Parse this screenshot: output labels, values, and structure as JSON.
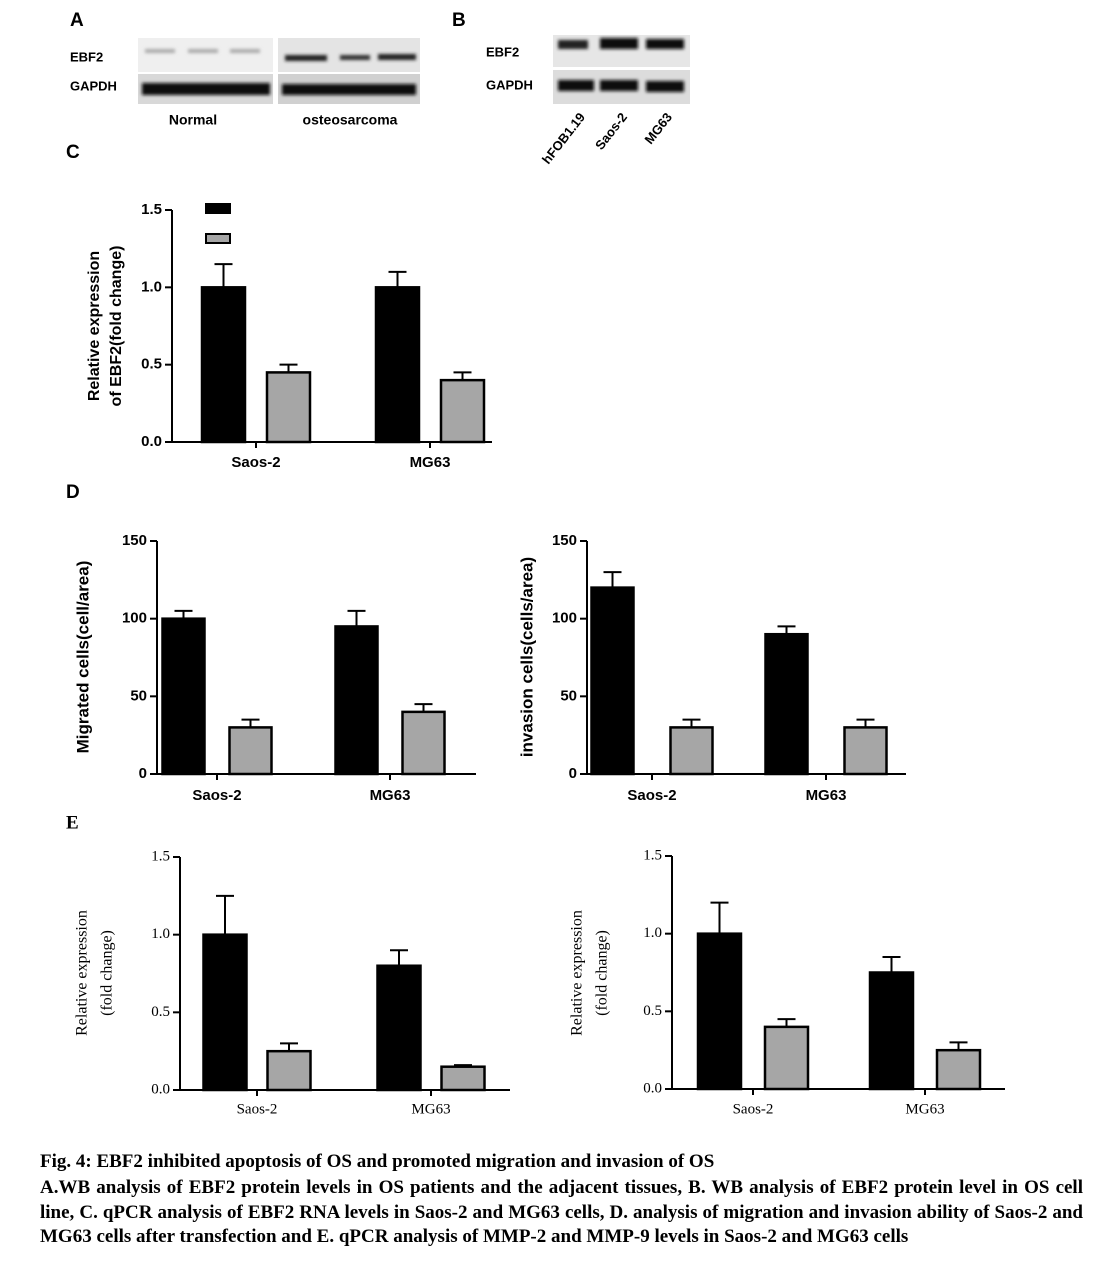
{
  "panel_labels": [
    "A",
    "B",
    "C",
    "D",
    "E"
  ],
  "blot_a": {
    "rows": [
      "EBF2",
      "GAPDH"
    ],
    "groups": [
      "Normal",
      "osteosarcoma"
    ]
  },
  "blot_b": {
    "rows": [
      "EBF2",
      "GAPDH"
    ],
    "lanes": [
      "hFOB1.19",
      "Saos-2",
      "MG63"
    ]
  },
  "chart_data": [
    {
      "type": "bar",
      "ylabel": [
        "Relative  expression",
        "of EBF2(fold change)"
      ],
      "categories": [
        "Saos-2",
        "MG63"
      ],
      "series": [
        {
          "color": "#000000",
          "values": [
            1.0,
            1.0
          ],
          "errors": [
            0.15,
            0.1
          ]
        },
        {
          "color": "#a6a6a6",
          "values": [
            0.45,
            0.4
          ],
          "errors": [
            0.05,
            0.05
          ]
        }
      ],
      "ylim": [
        0,
        1.5
      ],
      "yticks": [
        {
          "value": 0,
          "label": "0.0"
        },
        {
          "value": 0.5,
          "label": "0.5"
        },
        {
          "value": 1,
          "label": "1.0"
        },
        {
          "value": 1.5,
          "label": "1.5"
        }
      ],
      "legend": "upper-left"
    },
    {
      "type": "bar",
      "ylabel": [
        "Migrated cells(cell/area)"
      ],
      "categories": [
        "Saos-2",
        "MG63"
      ],
      "series": [
        {
          "color": "#000000",
          "values": [
            100,
            95
          ],
          "errors": [
            5,
            10
          ]
        },
        {
          "color": "#a6a6a6",
          "values": [
            30,
            40
          ],
          "errors": [
            5,
            5
          ]
        }
      ],
      "ylim": [
        0,
        150
      ],
      "yticks": [
        0,
        50,
        100,
        150
      ]
    },
    {
      "type": "bar",
      "ylabel": [
        "invasion cells(cells/area)"
      ],
      "categories": [
        "Saos-2",
        "MG63"
      ],
      "series": [
        {
          "color": "#000000",
          "values": [
            120,
            90
          ],
          "errors": [
            10,
            5
          ]
        },
        {
          "color": "#a6a6a6",
          "values": [
            30,
            30
          ],
          "errors": [
            5,
            5
          ]
        }
      ],
      "ylim": [
        0,
        150
      ],
      "yticks": [
        0,
        50,
        100,
        150
      ]
    },
    {
      "type": "bar",
      "ylabel": [
        "Relative  expression",
        "(fold change)"
      ],
      "categories": [
        "Saos-2",
        "MG63"
      ],
      "series": [
        {
          "color": "#000000",
          "values": [
            1.0,
            0.8
          ],
          "errors": [
            0.25,
            0.1
          ]
        },
        {
          "color": "#a6a6a6",
          "values": [
            0.25,
            0.15
          ],
          "errors": [
            0.05,
            0.01
          ]
        }
      ],
      "ylim": [
        0,
        1.5
      ],
      "yticks": [
        {
          "value": 0,
          "label": "0.0"
        },
        {
          "value": 0.5,
          "label": "0.5"
        },
        {
          "value": 1,
          "label": "1.0"
        },
        {
          "value": 1.5,
          "label": "1.5"
        }
      ]
    },
    {
      "type": "bar",
      "ylabel": [
        "Relative  expression",
        "(fold change)"
      ],
      "categories": [
        "Saos-2",
        "MG63"
      ],
      "series": [
        {
          "color": "#000000",
          "values": [
            1.0,
            0.75
          ],
          "errors": [
            0.2,
            0.1
          ]
        },
        {
          "color": "#a6a6a6",
          "values": [
            0.4,
            0.25
          ],
          "errors": [
            0.05,
            0.05
          ]
        }
      ],
      "ylim": [
        0,
        1.5
      ],
      "yticks": [
        {
          "value": 0,
          "label": "0.0"
        },
        {
          "value": 0.5,
          "label": "0.5"
        },
        {
          "value": 1,
          "label": "1.0"
        },
        {
          "value": 1.5,
          "label": "1.5"
        }
      ]
    }
  ],
  "caption": {
    "title": "Fig. 4: EBF2 inhibited apoptosis of OS and promoted migration and invasion of OS",
    "body": "A.WB analysis of EBF2 protein levels in OS patients and the adjacent tissues, B. WB analysis of EBF2 protein level in OS cell line, C. qPCR analysis of EBF2 RNA levels in Saos-2 and MG63 cells, D. analysis of migration and invasion ability of Saos-2 and MG63 cells after transfection and E. qPCR analysis of MMP-2 and MMP-9 levels in Saos-2 and MG63 cells"
  }
}
